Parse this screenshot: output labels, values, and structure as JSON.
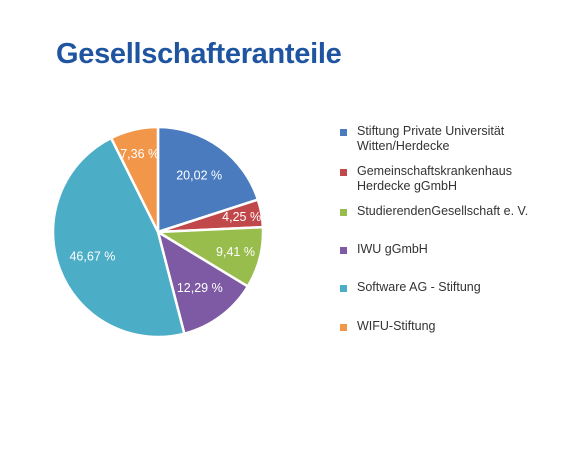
{
  "chart_data": {
    "type": "pie",
    "title": "Gesellschafteranteile",
    "slices": [
      {
        "name": "Stiftung Private Universität\nWitten/Herdecke",
        "value": 20.02,
        "label": "20,02 %",
        "color": "#4a7bbf"
      },
      {
        "name": "Gemeinschaftskrankenhaus\nHerdecke gGmbH",
        "value": 4.25,
        "label": "4,25 %",
        "color": "#c0474a"
      },
      {
        "name": "StudierendenGesellschaft e. V.",
        "value": 9.41,
        "label": "9,41 %",
        "color": "#98bd4c"
      },
      {
        "name": "IWU gGmbH",
        "value": 12.29,
        "label": "12,29 %",
        "color": "#7d5aa3"
      },
      {
        "name": "Software AG - Stiftung",
        "value": 46.67,
        "label": "46,67 %",
        "color": "#4badc6"
      },
      {
        "name": "WIFU-Stiftung",
        "value": 7.36,
        "label": "7,36 %",
        "color": "#f2974a"
      }
    ],
    "legend_position": "right"
  }
}
